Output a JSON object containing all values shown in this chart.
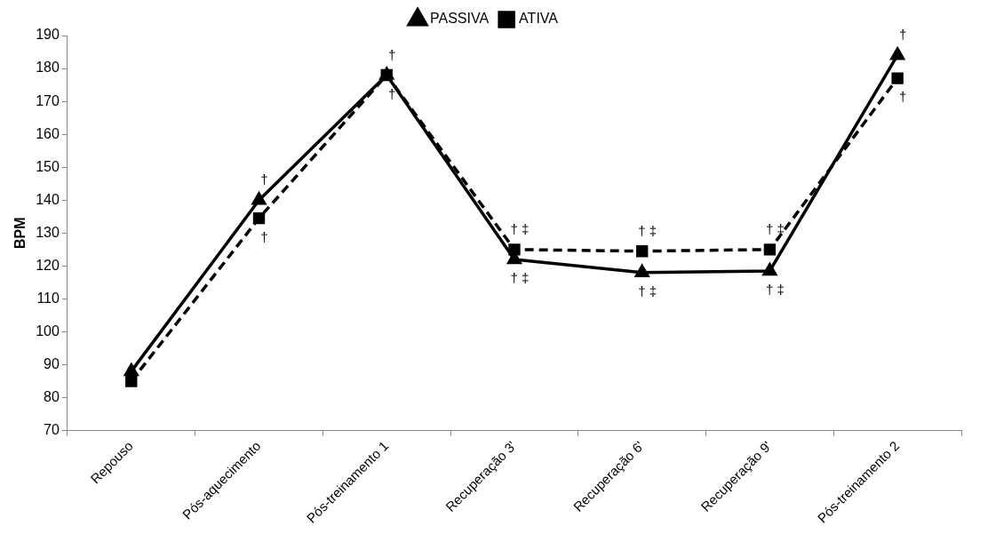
{
  "chart_data": {
    "type": "line",
    "ylabel": "BPM",
    "categories": [
      "Repouso",
      "Pós-aquecimento",
      "Pós-treinamento 1",
      "Recuperação 3'",
      "Recuperação 6'",
      "Recuperação 9'",
      "Pós-treinamento 2"
    ],
    "series": [
      {
        "name": "PASSIVA",
        "color": "#000000",
        "marker": "triangle",
        "line_style": "solid",
        "values": [
          88,
          140,
          178,
          122,
          118,
          118.5,
          184
        ]
      },
      {
        "name": "ATIVA",
        "color": "#000000",
        "marker": "square",
        "line_style": "dashed",
        "values": [
          85,
          134.5,
          178,
          125,
          124.5,
          125,
          177
        ]
      }
    ],
    "ylim": [
      70,
      190
    ],
    "yticks": [
      70,
      80,
      90,
      100,
      110,
      120,
      130,
      140,
      150,
      160,
      170,
      180,
      190
    ],
    "grid": false,
    "legend": "top",
    "annotations": [
      {
        "text": "†",
        "x": "Pós-aquecimento",
        "y": 140
      },
      {
        "text": "†",
        "x": "Pós-aquecimento",
        "y": 134.5
      },
      {
        "text": "†",
        "x": "Pós-treinamento 1",
        "y": 178
      },
      {
        "text": "†",
        "x": "Pós-treinamento 1",
        "y": 178
      },
      {
        "text": "† ‡",
        "x": "Recuperação 3'",
        "y": 125
      },
      {
        "text": "† ‡",
        "x": "Recuperação 3'",
        "y": 122
      },
      {
        "text": "† ‡",
        "x": "Recuperação 6'",
        "y": 124.5
      },
      {
        "text": "† ‡",
        "x": "Recuperação 6'",
        "y": 118
      },
      {
        "text": "† ‡",
        "x": "Recuperação 9'",
        "y": 125
      },
      {
        "text": "† ‡",
        "x": "Recuperação 9'",
        "y": 118.5
      },
      {
        "text": "†",
        "x": "Pós-treinamento 2",
        "y": 184
      },
      {
        "text": "†",
        "x": "Pós-treinamento 2",
        "y": 177
      }
    ]
  }
}
